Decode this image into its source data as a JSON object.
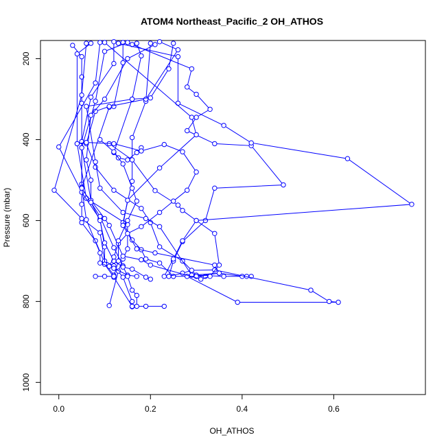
{
  "chart_data": {
    "type": "line",
    "title": "ATOM4 Northeast_Pacific_2 OH_ATHOS",
    "xlabel": "OH_ATHOS",
    "ylabel": "Pressure (mbar)",
    "xlim": [
      -0.04,
      0.8
    ],
    "ylim": [
      1030,
      155
    ],
    "y_reversed": true,
    "x_ticks": [
      0.0,
      0.2,
      0.4,
      0.6
    ],
    "x_tick_labels": [
      "0.0",
      "0.2",
      "0.4",
      "0.6"
    ],
    "y_ticks": [
      200,
      400,
      600,
      800,
      1000
    ],
    "y_tick_labels": [
      "200",
      "400",
      "600",
      "800",
      "1000"
    ],
    "grid": false,
    "colors": {
      "series": "#0000ff",
      "axes": "#000000",
      "background": "#ffffff"
    },
    "marker": "open-circle",
    "series": [
      {
        "points": [
          [
            0.03,
            167
          ],
          [
            0.05,
            195
          ],
          [
            0.05,
            245
          ],
          [
            0.05,
            310
          ],
          [
            0.05,
            420
          ],
          [
            0.05,
            510
          ],
          [
            0.05,
            560
          ],
          [
            0.05,
            605
          ],
          [
            0.08,
            650
          ],
          [
            0.1,
            705
          ],
          [
            0.12,
            735
          ]
        ]
      },
      {
        "points": [
          [
            0.06,
            162
          ],
          [
            0.05,
            290
          ],
          [
            -0.01,
            525
          ],
          [
            0.05,
            595
          ],
          [
            0.09,
            630
          ],
          [
            0.1,
            700
          ],
          [
            0.12,
            712
          ],
          [
            0.14,
            740
          ],
          [
            0.16,
            800
          ],
          [
            0.16,
            813
          ]
        ]
      },
      {
        "points": [
          [
            0.07,
            162
          ],
          [
            0.04,
            188
          ],
          [
            0.04,
            410
          ],
          [
            0.06,
            545
          ],
          [
            0.15,
            610
          ],
          [
            0.15,
            670
          ],
          [
            0.14,
            695
          ],
          [
            0.13,
            725
          ],
          [
            0.11,
            810
          ]
        ]
      },
      {
        "points": [
          [
            0.09,
            160
          ],
          [
            0.08,
            260
          ],
          [
            0.0,
            418
          ],
          [
            0.05,
            530
          ],
          [
            0.09,
            597
          ],
          [
            0.1,
            665
          ],
          [
            0.1,
            708
          ],
          [
            0.12,
            740
          ],
          [
            0.16,
            812
          ],
          [
            0.19,
            812
          ],
          [
            0.23,
            812
          ]
        ]
      },
      {
        "points": [
          [
            0.12,
            158
          ],
          [
            0.12,
            212
          ],
          [
            0.07,
            295
          ],
          [
            0.05,
            405
          ],
          [
            0.05,
            518
          ],
          [
            0.06,
            598
          ],
          [
            0.09,
            680
          ],
          [
            0.09,
            705
          ],
          [
            0.12,
            718
          ],
          [
            0.15,
            735
          ],
          [
            0.17,
            738
          ]
        ]
      },
      {
        "points": [
          [
            0.14,
            160
          ],
          [
            0.14,
            210
          ],
          [
            0.12,
            318
          ],
          [
            0.11,
            320
          ],
          [
            0.05,
            520
          ],
          [
            0.09,
            590
          ],
          [
            0.12,
            667
          ],
          [
            0.14,
            712
          ],
          [
            0.15,
            738
          ],
          [
            0.16,
            772
          ],
          [
            0.17,
            785
          ],
          [
            0.17,
            812
          ]
        ]
      },
      {
        "points": [
          [
            0.17,
            162
          ],
          [
            0.18,
            193
          ],
          [
            0.16,
            300
          ],
          [
            0.12,
            432
          ],
          [
            0.13,
            445
          ],
          [
            0.15,
            450
          ],
          [
            0.17,
            432
          ],
          [
            0.18,
            420
          ]
        ]
      },
      {
        "points": [
          [
            0.2,
            162
          ],
          [
            0.19,
            305
          ],
          [
            0.16,
            395
          ],
          [
            0.16,
            503
          ],
          [
            0.14,
            605
          ],
          [
            0.16,
            648
          ],
          [
            0.18,
            672
          ],
          [
            0.19,
            695
          ],
          [
            0.22,
            705
          ],
          [
            0.25,
            738
          ],
          [
            0.28,
            738
          ],
          [
            0.3,
            738
          ],
          [
            0.32,
            738
          ]
        ]
      },
      {
        "points": [
          [
            0.22,
            158
          ],
          [
            0.26,
            178
          ],
          [
            0.19,
            300
          ],
          [
            0.11,
            318
          ],
          [
            0.08,
            330
          ],
          [
            0.06,
            410
          ],
          [
            0.08,
            468
          ],
          [
            0.12,
            525
          ],
          [
            0.18,
            570
          ],
          [
            0.2,
            605
          ],
          [
            0.22,
            665
          ],
          [
            0.27,
            700
          ],
          [
            0.3,
            735
          ],
          [
            0.36,
            738
          ],
          [
            0.42,
            738
          ]
        ]
      },
      {
        "points": [
          [
            0.25,
            162
          ],
          [
            0.24,
            225
          ],
          [
            0.2,
            297
          ],
          [
            0.16,
            300
          ],
          [
            0.06,
            318
          ],
          [
            0.08,
            455
          ],
          [
            0.09,
            520
          ],
          [
            0.14,
            580
          ],
          [
            0.19,
            595
          ],
          [
            0.22,
            615
          ],
          [
            0.29,
            735
          ],
          [
            0.35,
            730
          ],
          [
            0.4,
            738
          ],
          [
            0.41,
            738
          ]
        ]
      },
      {
        "points": [
          [
            0.16,
            165
          ],
          [
            0.29,
            225
          ],
          [
            0.28,
            270
          ],
          [
            0.3,
            288
          ],
          [
            0.33,
            325
          ],
          [
            0.3,
            345
          ],
          [
            0.28,
            378
          ],
          [
            0.34,
            410
          ],
          [
            0.42,
            415
          ],
          [
            0.49,
            512
          ],
          [
            0.34,
            520
          ],
          [
            0.32,
            600
          ],
          [
            0.27,
            652
          ],
          [
            0.25,
            700
          ],
          [
            0.24,
            738
          ],
          [
            0.25,
            738
          ]
        ]
      },
      {
        "points": [
          [
            0.13,
            162
          ],
          [
            0.26,
            195
          ],
          [
            0.26,
            310
          ],
          [
            0.36,
            365
          ],
          [
            0.42,
            408
          ],
          [
            0.63,
            447
          ],
          [
            0.77,
            560
          ],
          [
            0.3,
            600
          ],
          [
            0.27,
            650
          ],
          [
            0.25,
            695
          ],
          [
            0.23,
            738
          ]
        ]
      },
      {
        "points": [
          [
            0.1,
            160
          ],
          [
            0.29,
            345
          ],
          [
            0.3,
            388
          ],
          [
            0.22,
            470
          ],
          [
            0.15,
            550
          ],
          [
            0.14,
            612
          ],
          [
            0.17,
            670
          ],
          [
            0.21,
            680
          ],
          [
            0.34,
            710
          ],
          [
            0.35,
            730
          ],
          [
            0.3,
            738
          ],
          [
            0.28,
            738
          ],
          [
            0.39,
            802
          ],
          [
            0.61,
            802
          ],
          [
            0.59,
            800
          ],
          [
            0.55,
            772
          ],
          [
            0.34,
            722
          ],
          [
            0.29,
            723
          ],
          [
            0.27,
            730
          ],
          [
            0.24,
            738
          ]
        ]
      },
      {
        "points": [
          [
            0.15,
            160
          ],
          [
            0.1,
            182
          ],
          [
            0.08,
            305
          ],
          [
            0.05,
            420
          ],
          [
            0.07,
            550
          ],
          [
            0.1,
            595
          ],
          [
            0.11,
            612
          ],
          [
            0.14,
            688
          ],
          [
            0.18,
            697
          ],
          [
            0.2,
            710
          ],
          [
            0.31,
            745
          ],
          [
            0.33,
            738
          ],
          [
            0.35,
            710
          ],
          [
            0.34,
            632
          ],
          [
            0.3,
            600
          ],
          [
            0.27,
            575
          ],
          [
            0.26,
            562
          ],
          [
            0.21,
            526
          ],
          [
            0.16,
            450
          ],
          [
            0.11,
            410
          ]
        ]
      },
      {
        "points": [
          [
            0.21,
            165
          ],
          [
            0.15,
            200
          ],
          [
            0.1,
            300
          ],
          [
            0.07,
            340
          ],
          [
            0.06,
            450
          ],
          [
            0.07,
            500
          ],
          [
            0.07,
            555
          ],
          [
            0.09,
            600
          ],
          [
            0.1,
            655
          ],
          [
            0.12,
            700
          ],
          [
            0.14,
            715
          ],
          [
            0.16,
            720
          ],
          [
            0.19,
            740
          ],
          [
            0.2,
            745
          ]
        ]
      },
      {
        "points": [
          [
            0.04,
            410
          ],
          [
            0.06,
            407
          ],
          [
            0.12,
            410
          ],
          [
            0.18,
            428
          ],
          [
            0.23,
            412
          ],
          [
            0.27,
            430
          ],
          [
            0.3,
            480
          ],
          [
            0.28,
            525
          ],
          [
            0.25,
            552
          ],
          [
            0.22,
            580
          ],
          [
            0.18,
            615
          ],
          [
            0.15,
            632
          ],
          [
            0.13,
            657
          ],
          [
            0.12,
            690
          ],
          [
            0.11,
            713
          ]
        ]
      },
      {
        "points": [
          [
            0.09,
            400
          ],
          [
            0.12,
            430
          ],
          [
            0.14,
            460
          ],
          [
            0.16,
            520
          ],
          [
            0.17,
            552
          ],
          [
            0.15,
            600
          ],
          [
            0.13,
            650
          ],
          [
            0.13,
            700
          ],
          [
            0.12,
            738
          ],
          [
            0.1,
            738
          ],
          [
            0.08,
            738
          ]
        ]
      }
    ]
  }
}
